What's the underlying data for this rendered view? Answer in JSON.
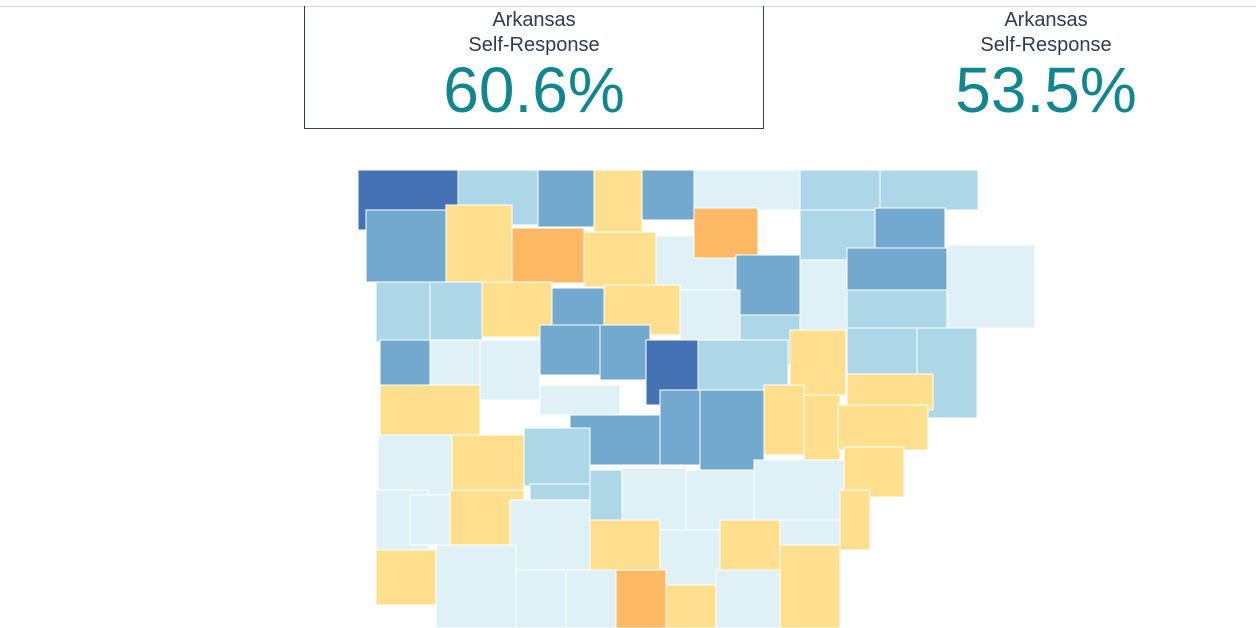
{
  "panels": [
    {
      "label": "Arkansas",
      "sublabel": "Self-Response",
      "value": "60.6%"
    },
    {
      "label": "Arkansas",
      "sublabel": "Self-Response",
      "value": "53.5%"
    }
  ]
}
